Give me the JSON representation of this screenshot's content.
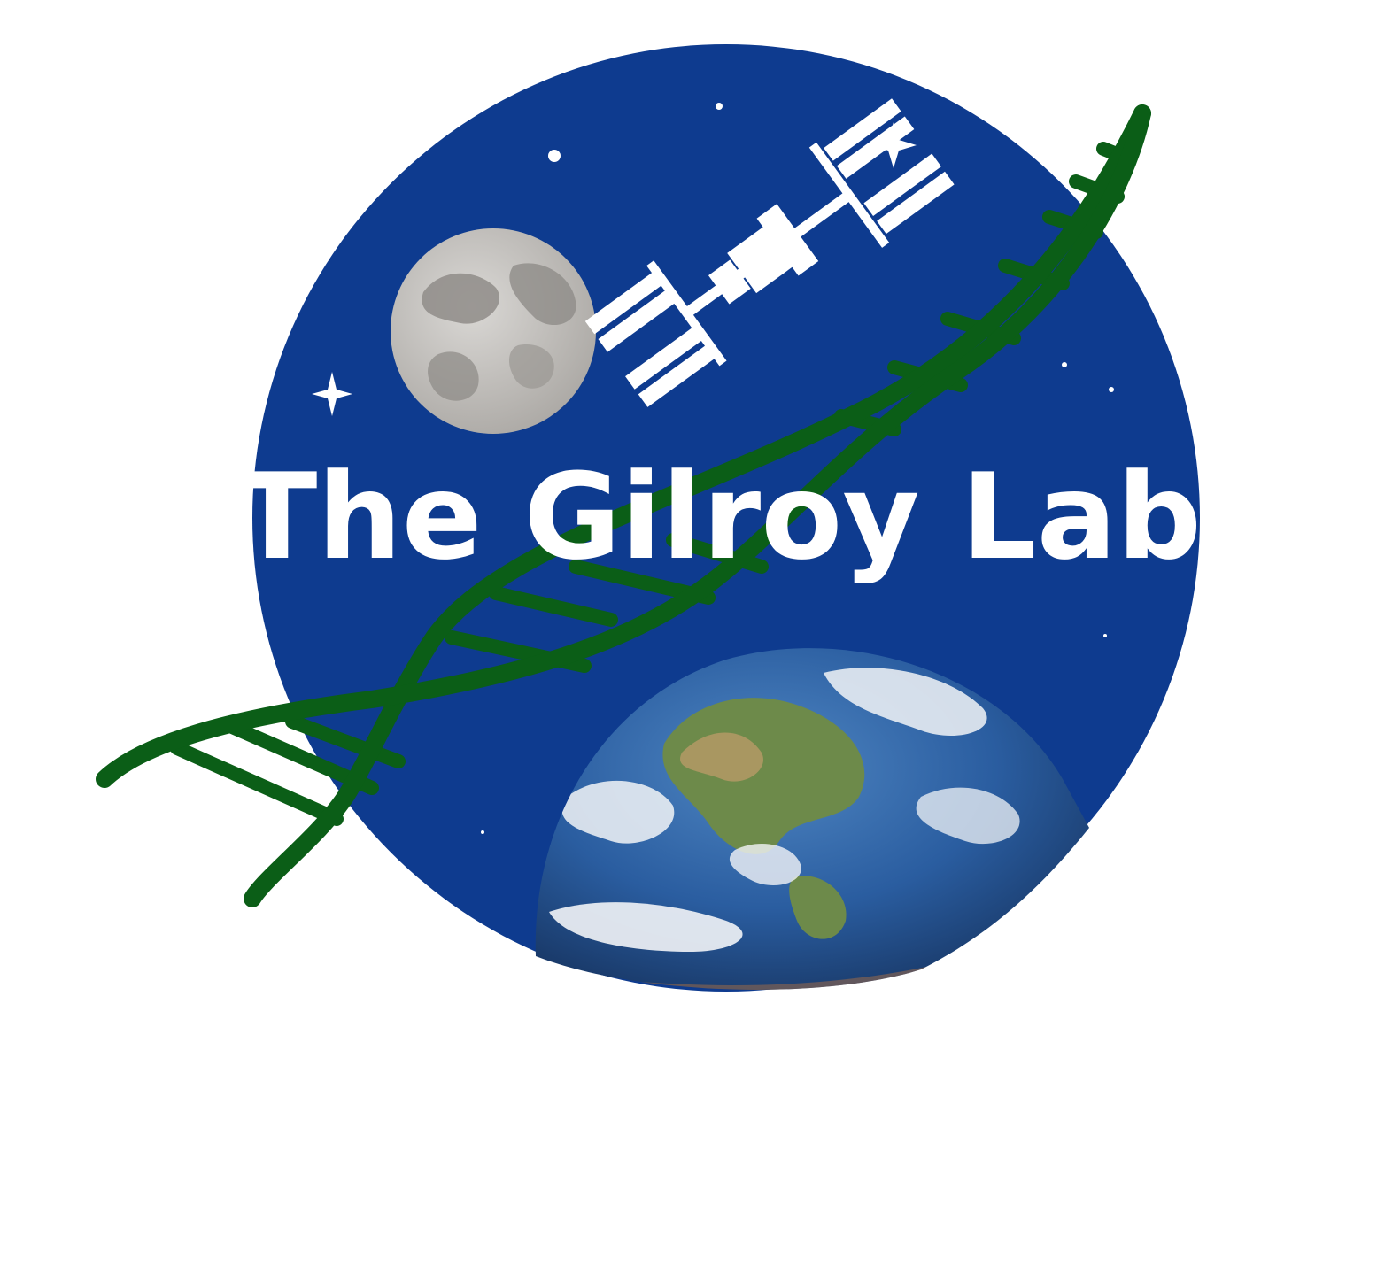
{
  "logo": {
    "title": "The Gilroy Lab"
  },
  "colors": {
    "background": "#ffffff",
    "space_blue": "#0e3b8f",
    "dna_green": "#0b5e17",
    "moon_light": "#c9c7c4",
    "moon_dark": "#8f8c88",
    "earth_ocean": "#2a5da0",
    "earth_land": "#6d8a4a",
    "cloud_white": "#f2f4f7",
    "station_white": "#ffffff"
  },
  "icons": [
    "moon-icon",
    "space-station-icon",
    "dna-helix-icon",
    "earth-icon",
    "star-icon"
  ]
}
